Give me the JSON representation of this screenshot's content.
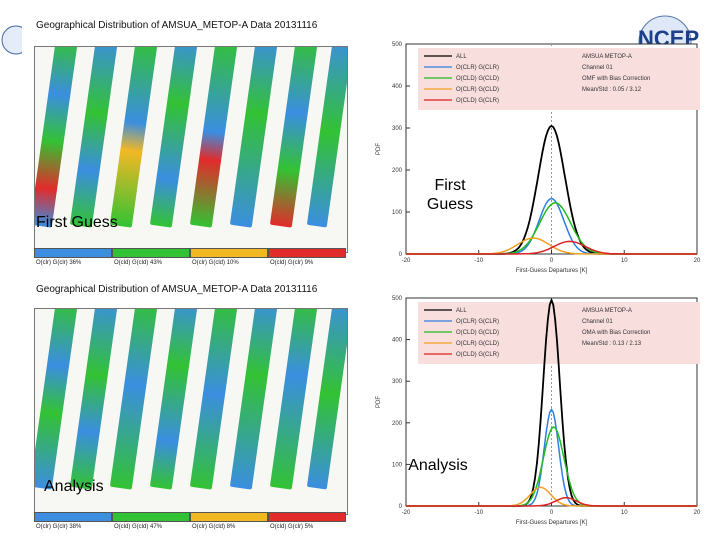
{
  "top_map": {
    "title": "Geographical Distribution of AMSUA_METOP-A Data  20131116",
    "overlay_label": "First Guess",
    "colorbar": [
      {
        "label": "O(clr)  G(clr)  36%",
        "color": "#3b8ee0"
      },
      {
        "label": "O(cld)  G(cld)  43%",
        "color": "#33c233"
      },
      {
        "label": "O(clr)  G(cld)  10%",
        "color": "#f2b824"
      },
      {
        "label": "O(cld)  G(clr)   9%",
        "color": "#e22b2b"
      }
    ]
  },
  "bottom_map": {
    "title": "Geographical Distribution of AMSUA_METOP-A Data  20131116",
    "overlay_label": "Analysis",
    "colorbar": [
      {
        "label": "O(clr)  G(clr)  38%",
        "color": "#3b8ee0"
      },
      {
        "label": "O(cld)  G(cld)  47%",
        "color": "#33c233"
      },
      {
        "label": "O(clr)  G(cld)   8%",
        "color": "#f2b824"
      },
      {
        "label": "O(cld)  G(clr)   5%",
        "color": "#e22b2b"
      }
    ]
  },
  "logo": {
    "text": "NCEP"
  },
  "chart_data": [
    {
      "type": "line",
      "overlay_label": "First\nGuess",
      "xlabel": "First-Guess Departures [K]",
      "ylabel": "PDF",
      "xlim": [
        -20,
        20
      ],
      "ylim": [
        0,
        500
      ],
      "xticks": [
        -20,
        -10,
        0,
        10,
        20
      ],
      "yticks": [
        0,
        100,
        200,
        300,
        400,
        500
      ],
      "legend": [
        "ALL",
        "O(CLR)  G(CLR)",
        "O(CLD)  G(CLD)",
        "O(CLR)  G(CLD)",
        "O(CLD)  G(CLR)"
      ],
      "info": [
        "AMSUA  METOP-A",
        "Channel 01",
        "OMF with Bias Correction",
        "Mean/Std :  0.05 / 3.12"
      ],
      "series": [
        {
          "name": "ALL",
          "color": "#000000",
          "peak": 305,
          "center": 0.0,
          "width": 2.6
        },
        {
          "name": "O(CLR)  G(CLR)",
          "color": "#2f7fe0",
          "peak": 132,
          "center": 0.0,
          "width": 2.4
        },
        {
          "name": "O(CLD)  G(CLD)",
          "color": "#22bb22",
          "peak": 122,
          "center": 0.5,
          "width": 3.0
        },
        {
          "name": "O(CLR)  G(CLD)",
          "color": "#f0a020",
          "peak": 38,
          "center": -2.5,
          "width": 3.0
        },
        {
          "name": "O(CLD)  G(CLR)",
          "color": "#dd2222",
          "peak": 30,
          "center": 2.5,
          "width": 3.0
        }
      ]
    },
    {
      "type": "line",
      "overlay_label": "Analysis",
      "xlabel": "First-Guess Departures [K]",
      "ylabel": "PDF",
      "xlim": [
        -20,
        20
      ],
      "ylim": [
        0,
        500
      ],
      "xticks": [
        -20,
        -10,
        0,
        10,
        20
      ],
      "yticks": [
        0,
        100,
        200,
        300,
        400,
        500
      ],
      "legend": [
        "ALL",
        "O(CLR)  G(CLR)",
        "O(CLD)  G(CLD)",
        "O(CLR)  G(CLD)",
        "O(CLD)  G(CLR)"
      ],
      "info": [
        "AMSUA  METOP-A",
        "Channel 01",
        "OMA with Bias Correction",
        "Mean/Std :  0.13 / 2.13"
      ],
      "series": [
        {
          "name": "ALL",
          "color": "#000000",
          "peak": 495,
          "center": 0.0,
          "width": 1.6
        },
        {
          "name": "O(CLR)  G(CLR)",
          "color": "#2f7fe0",
          "peak": 232,
          "center": 0.0,
          "width": 1.4
        },
        {
          "name": "O(CLD)  G(CLD)",
          "color": "#22bb22",
          "peak": 190,
          "center": 0.3,
          "width": 2.0
        },
        {
          "name": "O(CLR)  G(CLD)",
          "color": "#f0a020",
          "peak": 45,
          "center": -1.5,
          "width": 2.0
        },
        {
          "name": "O(CLD)  G(CLR)",
          "color": "#dd2222",
          "peak": 20,
          "center": 2.0,
          "width": 2.0
        }
      ]
    }
  ]
}
